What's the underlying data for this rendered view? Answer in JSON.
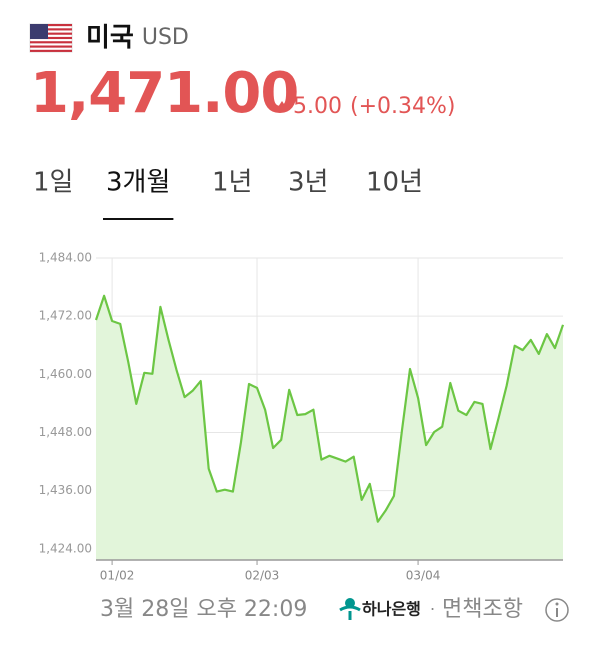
{
  "header": {
    "country": "미국",
    "currency": "USD",
    "price": "1,471.00",
    "change": "5.00",
    "change_percent": "(+0.34%)"
  },
  "tabs": [
    "1일",
    "3개월",
    "1년",
    "3년",
    "10년"
  ],
  "selected_tab": 1,
  "chart_data": {
    "type": "line",
    "color": "#6cc644",
    "fill_color": "#e2f5da",
    "categories": [
      null,
      null,
      "01/02",
      null,
      null,
      null,
      null,
      null,
      null,
      null,
      null,
      null,
      null,
      null,
      null,
      null,
      null,
      null,
      null,
      null,
      "02/03",
      null,
      null,
      null,
      null,
      null,
      null,
      null,
      null,
      null,
      null,
      null,
      null,
      null,
      null,
      null,
      null,
      null,
      null,
      null,
      "03/04",
      null,
      null,
      null,
      null,
      null,
      null,
      null,
      null,
      null,
      null,
      null,
      null,
      null,
      null,
      null,
      null,
      null,
      null
    ],
    "values": [
      1471.2,
      1476.2,
      1471.0,
      1470.4,
      1462.6,
      1453.9,
      1460.3,
      1460.1,
      1473.9,
      1467.1,
      1460.9,
      1455.3,
      1456.6,
      1458.6,
      1440.5,
      1435.8,
      1436.2,
      1435.8,
      1445.9,
      1458.0,
      1457.2,
      1452.7,
      1444.8,
      1446.5,
      1456.8,
      1451.6,
      1451.8,
      1452.7,
      1442.4,
      1443.2,
      1442.6,
      1442.0,
      1443.0,
      1434.1,
      1437.4,
      1429.6,
      1432.0,
      1434.9,
      1448.5,
      1461.1,
      1455.1,
      1445.4,
      1448.1,
      1449.2,
      1458.2,
      1452.5,
      1451.6,
      1454.3,
      1453.9,
      1444.6,
      1451.0,
      1457.6,
      1465.9,
      1465.0,
      1467.1,
      1464.2,
      1468.3,
      1465.4,
      1470.2
    ],
    "ylim": [
      1421.7,
      1487.7
    ],
    "yticks": [
      {
        "value": 1484,
        "label": "1,484.00"
      },
      {
        "value": 1472,
        "label": "1,472.00"
      },
      {
        "value": 1460,
        "label": "1,460.00"
      },
      {
        "value": 1448,
        "label": "1,448.00"
      },
      {
        "value": 1436,
        "label": "1,436.00"
      },
      {
        "value": 1424,
        "label": "1,424.00"
      }
    ],
    "grid": true
  },
  "footer": {
    "timestamp": "3월 28일 오후 22:09",
    "bank": "하나은행",
    "separator": "·",
    "disclaimer": "면책조항"
  }
}
